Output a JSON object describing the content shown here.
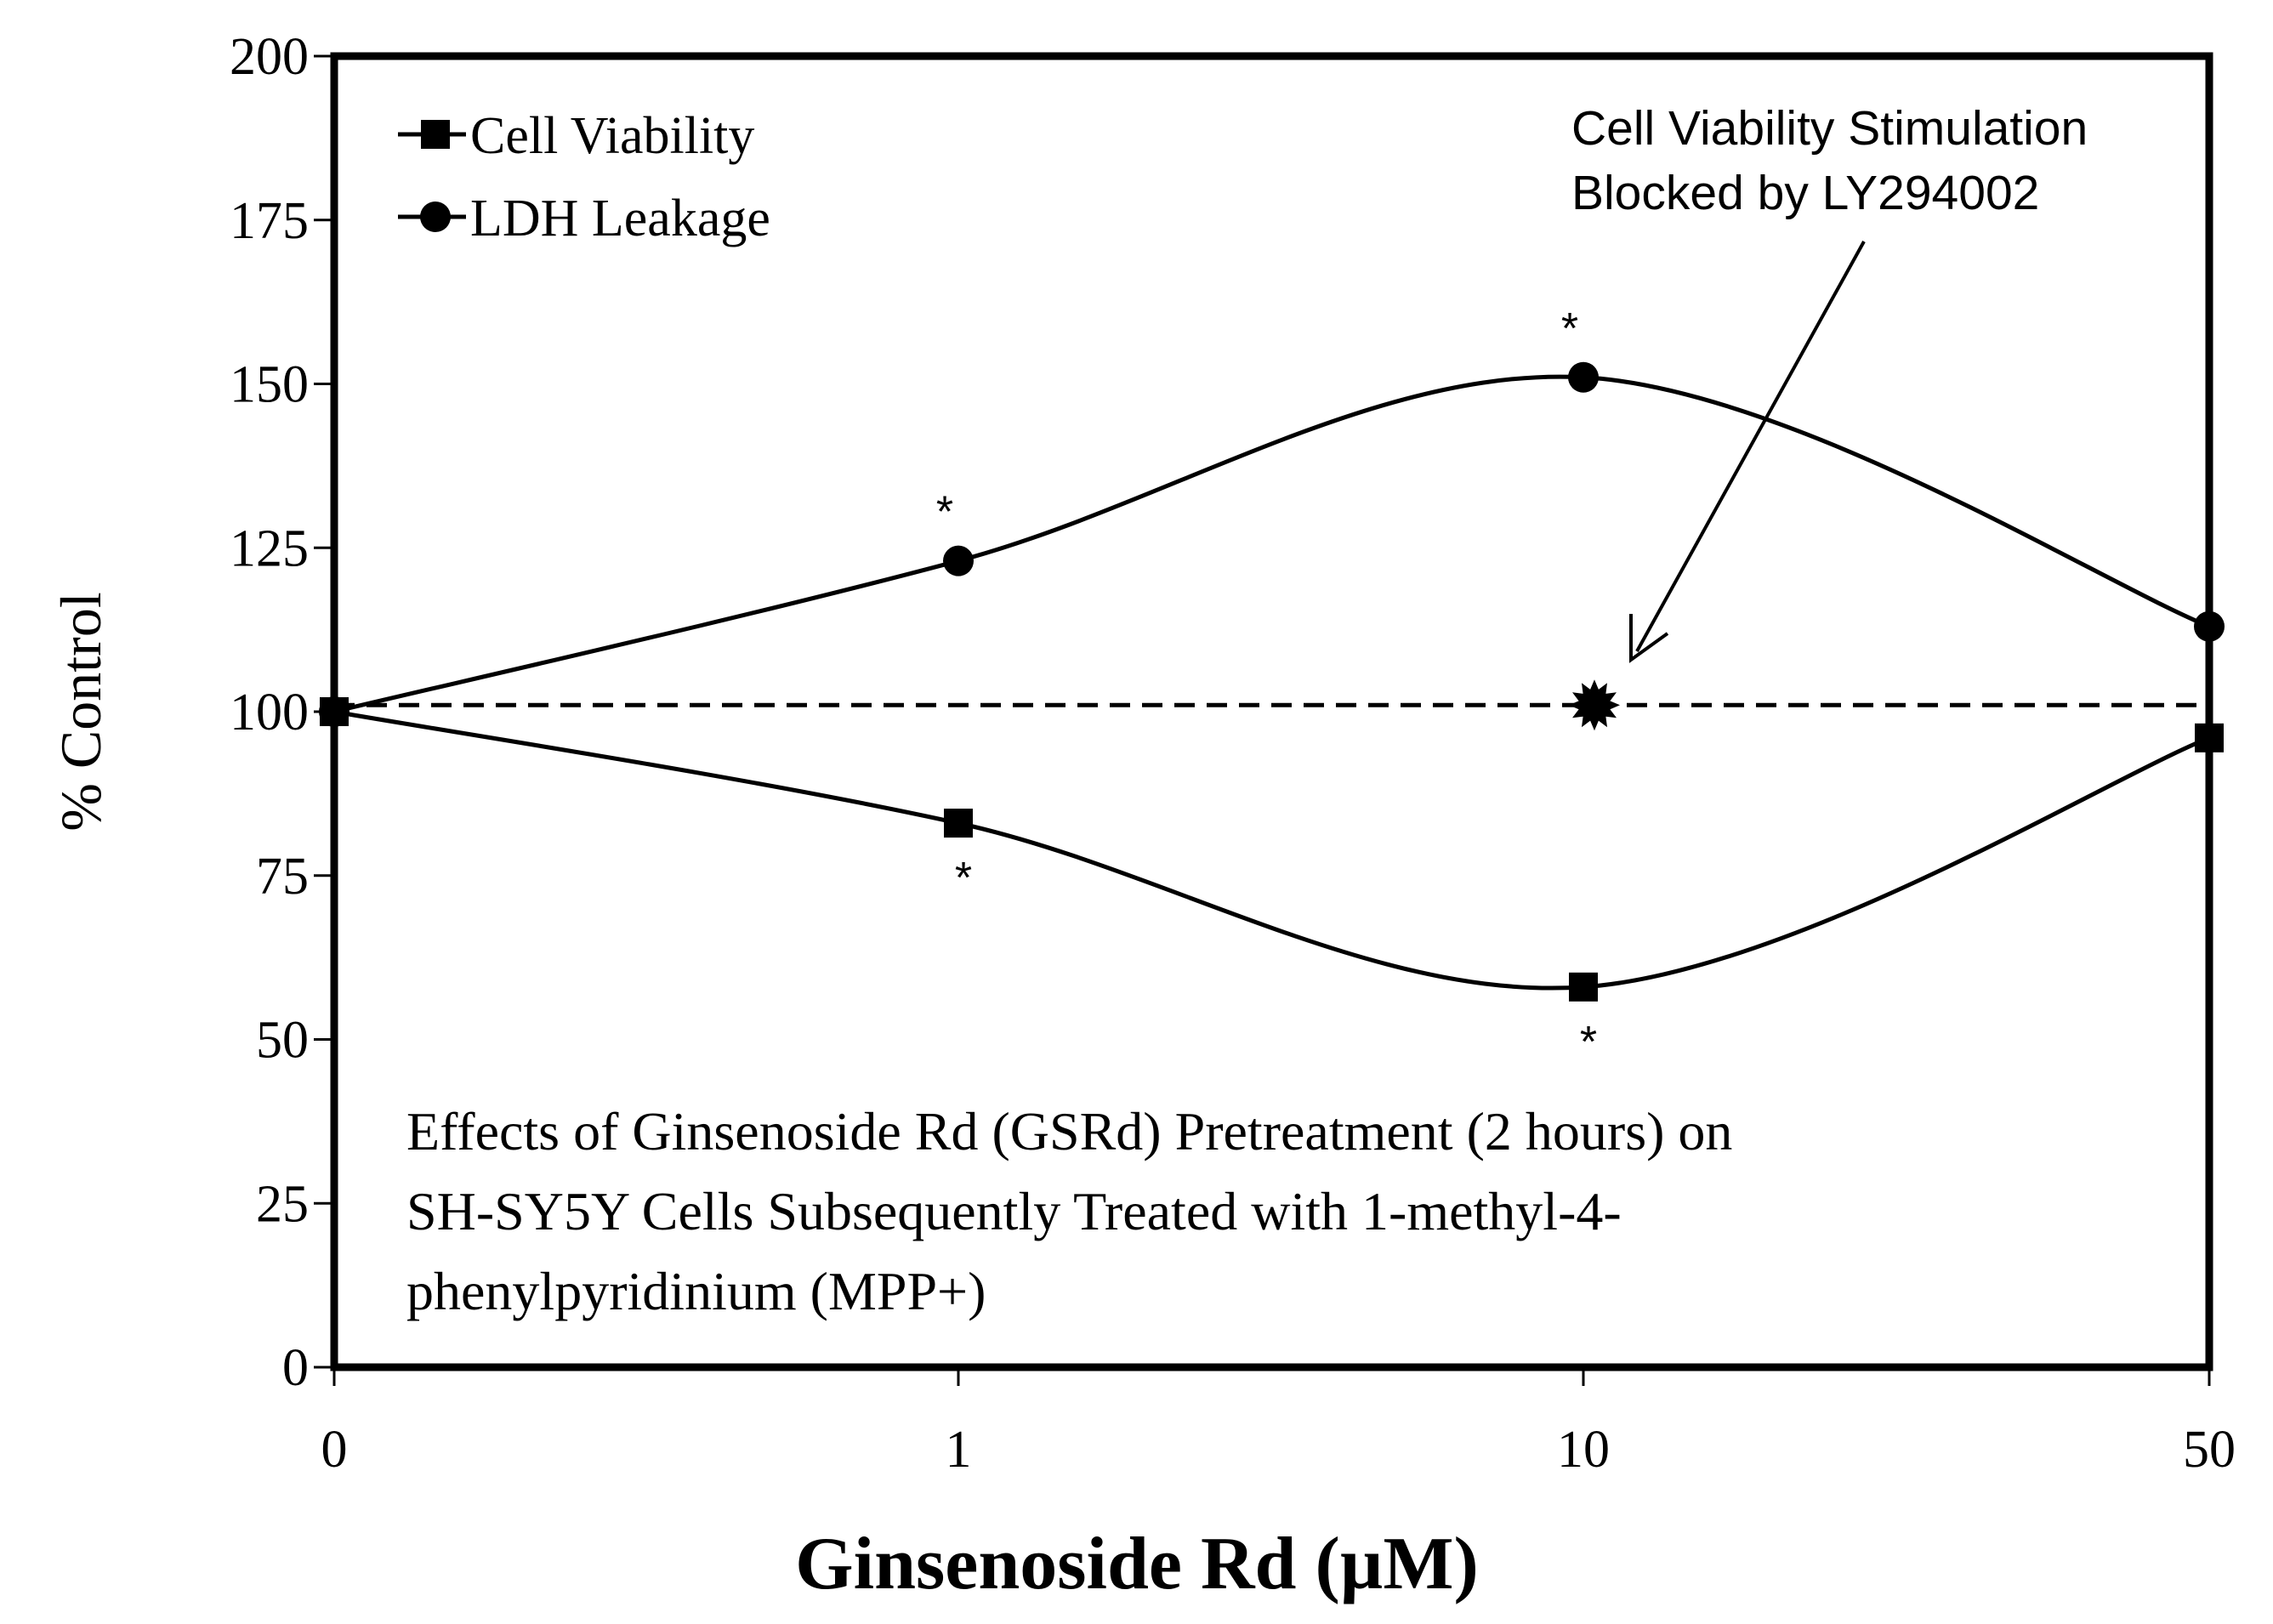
{
  "chart_data": {
    "type": "line",
    "title": "",
    "xlabel": "Ginsenoside Rd (µM)",
    "ylabel": "% Control",
    "categories": [
      "0",
      "1",
      "10",
      "50"
    ],
    "ylim": [
      0,
      200
    ],
    "yticks": [
      "0",
      "25",
      "50",
      "75",
      "100",
      "125",
      "150",
      "175",
      "200"
    ],
    "series": [
      {
        "name": "Cell Viability",
        "marker": "square",
        "values": [
          100,
          83,
          58,
          96
        ],
        "sig": [
          "",
          "*",
          "*",
          ""
        ]
      },
      {
        "name": "LDH Leakage",
        "marker": "circle",
        "values": [
          100,
          123,
          151,
          113
        ],
        "sig": [
          "",
          "*",
          "*",
          ""
        ]
      }
    ],
    "reference_line": {
      "value": 101,
      "style": "dashed"
    },
    "blocked_point": {
      "category": "10",
      "value": 101,
      "marker": "star"
    },
    "annotation": {
      "lines": [
        "Cell Viability Stimulation",
        "Blocked by LY294002"
      ]
    },
    "caption": {
      "lines": [
        "Effects of Ginsenoside Rd (GSRd) Pretreatment (2 hours) on",
        "SH-SY5Y Cells Subsequently Treated with 1-methyl-4-",
        "phenylpyridinium (MPP+)"
      ]
    },
    "legend": {
      "position": "top-left"
    },
    "grid": false
  },
  "colors": {
    "ink": "#000000",
    "background": "#ffffff"
  }
}
